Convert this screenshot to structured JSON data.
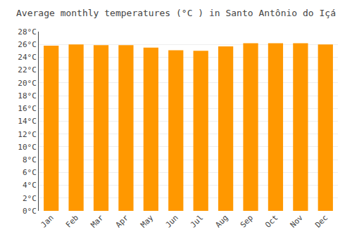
{
  "chart_data": {
    "type": "bar",
    "title": "Average monthly temperatures (°C ) in Santo Antônio do Içá",
    "categories": [
      "Jan",
      "Feb",
      "Mar",
      "Apr",
      "May",
      "Jun",
      "Jul",
      "Aug",
      "Sep",
      "Oct",
      "Nov",
      "Dec"
    ],
    "values": [
      25.8,
      26.0,
      25.9,
      25.9,
      25.5,
      25.1,
      25.0,
      25.7,
      26.2,
      26.2,
      26.2,
      26.0
    ],
    "color": "#FF9800",
    "ylim": [
      0,
      28
    ],
    "yticks": [
      {
        "value": 0,
        "label": "0°C"
      },
      {
        "value": 2,
        "label": "2°C"
      },
      {
        "value": 4,
        "label": "4°C"
      },
      {
        "value": 6,
        "label": "6°C"
      },
      {
        "value": 8,
        "label": "8°C"
      },
      {
        "value": 10,
        "label": "10°C"
      },
      {
        "value": 12,
        "label": "12°C"
      },
      {
        "value": 14,
        "label": "14°C"
      },
      {
        "value": 16,
        "label": "16°C"
      },
      {
        "value": 18,
        "label": "18°C"
      },
      {
        "value": 20,
        "label": "20°C"
      },
      {
        "value": 22,
        "label": "22°C"
      },
      {
        "value": 24,
        "label": "24°C"
      },
      {
        "value": 26,
        "label": "26°C"
      },
      {
        "value": 28,
        "label": "28°C"
      }
    ],
    "grid": true
  }
}
